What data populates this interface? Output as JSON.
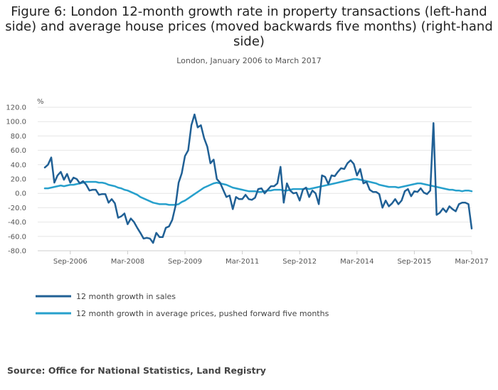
{
  "chart_data": {
    "type": "line",
    "title": "Figure 6: London 12-month growth rate in property transactions (left-hand side) and average house prices (moved backwards five months) (right-hand side)",
    "subtitle": "London, January 2006 to March 2017",
    "ylabel": "%",
    "ylim": [
      -80,
      120
    ],
    "yticks": [
      "120.0",
      "100.0",
      "80.0",
      "60.0",
      "40.0",
      "20.0",
      "0.0",
      "-20.0",
      "-40.0",
      "-60.0",
      "-80.0"
    ],
    "x_start": "Jan-2006",
    "x_end": "Mar-2017",
    "xtick_labels": [
      "Sep-2006",
      "Mar-2008",
      "Sep-2009",
      "Mar-2011",
      "Sep-2012",
      "Mar-2014",
      "Sep-2015",
      "Mar-2017"
    ],
    "xtick_month_index": [
      8,
      26,
      44,
      62,
      80,
      98,
      116,
      134
    ],
    "grid": true,
    "series": [
      {
        "name": "12 month growth in sales",
        "color": "#206095",
        "values": [
          36,
          40,
          50,
          15,
          25,
          30,
          19,
          27,
          15,
          22,
          20,
          14,
          17,
          12,
          4,
          5,
          5,
          -2,
          -1,
          -1,
          -13,
          -8,
          -14,
          -34,
          -32,
          -28,
          -43,
          -35,
          -40,
          -48,
          -55,
          -63,
          -62,
          -63,
          -69,
          -55,
          -61,
          -61,
          -48,
          -46,
          -37,
          -18,
          15,
          28,
          52,
          60,
          95,
          110,
          92,
          95,
          77,
          65,
          42,
          47,
          20,
          15,
          5,
          -5,
          -3,
          -22,
          -5,
          -8,
          -8,
          -2,
          -8,
          -9,
          -6,
          6,
          7,
          0,
          5,
          10,
          10,
          14,
          37,
          -13,
          14,
          4,
          0,
          1,
          -10,
          5,
          8,
          -5,
          4,
          0,
          -15,
          25,
          23,
          13,
          25,
          24,
          30,
          35,
          34,
          42,
          46,
          41,
          25,
          34,
          14,
          16,
          5,
          2,
          2,
          -1,
          -20,
          -10,
          -18,
          -14,
          -8,
          -15,
          -10,
          3,
          6,
          -4,
          3,
          2,
          7,
          1,
          -1,
          4,
          98,
          -30,
          -27,
          -21,
          -26,
          -18,
          -22,
          -25,
          -15,
          -13,
          -13,
          -15,
          -49
        ],
        "values_note": "monthly from Jan-2006 to Mar-2017"
      },
      {
        "name": "12 month growth in average prices, pushed forward five months",
        "color": "#27a0cc",
        "values": [
          7,
          7,
          8,
          9,
          10,
          11,
          10,
          11,
          12,
          12,
          13,
          14,
          15,
          16,
          16,
          16,
          16,
          15,
          15,
          14,
          12,
          11,
          10,
          8,
          7,
          5,
          4,
          2,
          0,
          -2,
          -5,
          -7,
          -9,
          -11,
          -13,
          -14,
          -15,
          -15,
          -15,
          -16,
          -16,
          -16,
          -15,
          -12,
          -10,
          -7,
          -4,
          -1,
          2,
          5,
          8,
          10,
          12,
          14,
          15,
          14,
          13,
          12,
          10,
          8,
          7,
          6,
          5,
          4,
          3,
          3,
          3,
          2,
          2,
          3,
          4,
          4,
          5,
          5,
          5,
          4,
          4,
          5,
          6,
          6,
          6,
          6,
          7,
          6,
          7,
          8,
          9,
          10,
          11,
          12,
          13,
          14,
          15,
          16,
          17,
          18,
          19,
          20,
          20,
          19,
          18,
          17,
          16,
          15,
          14,
          12,
          11,
          10,
          9,
          9,
          9,
          8,
          9,
          10,
          11,
          12,
          13,
          14,
          14,
          13,
          12,
          11,
          10,
          9,
          8,
          7,
          6,
          5,
          5,
          4,
          4,
          3,
          4,
          4,
          3
        ],
        "values_note": "monthly from Jan-2006 to Mar-2017"
      }
    ]
  },
  "source": "Source: Office for National Statistics, Land Registry"
}
